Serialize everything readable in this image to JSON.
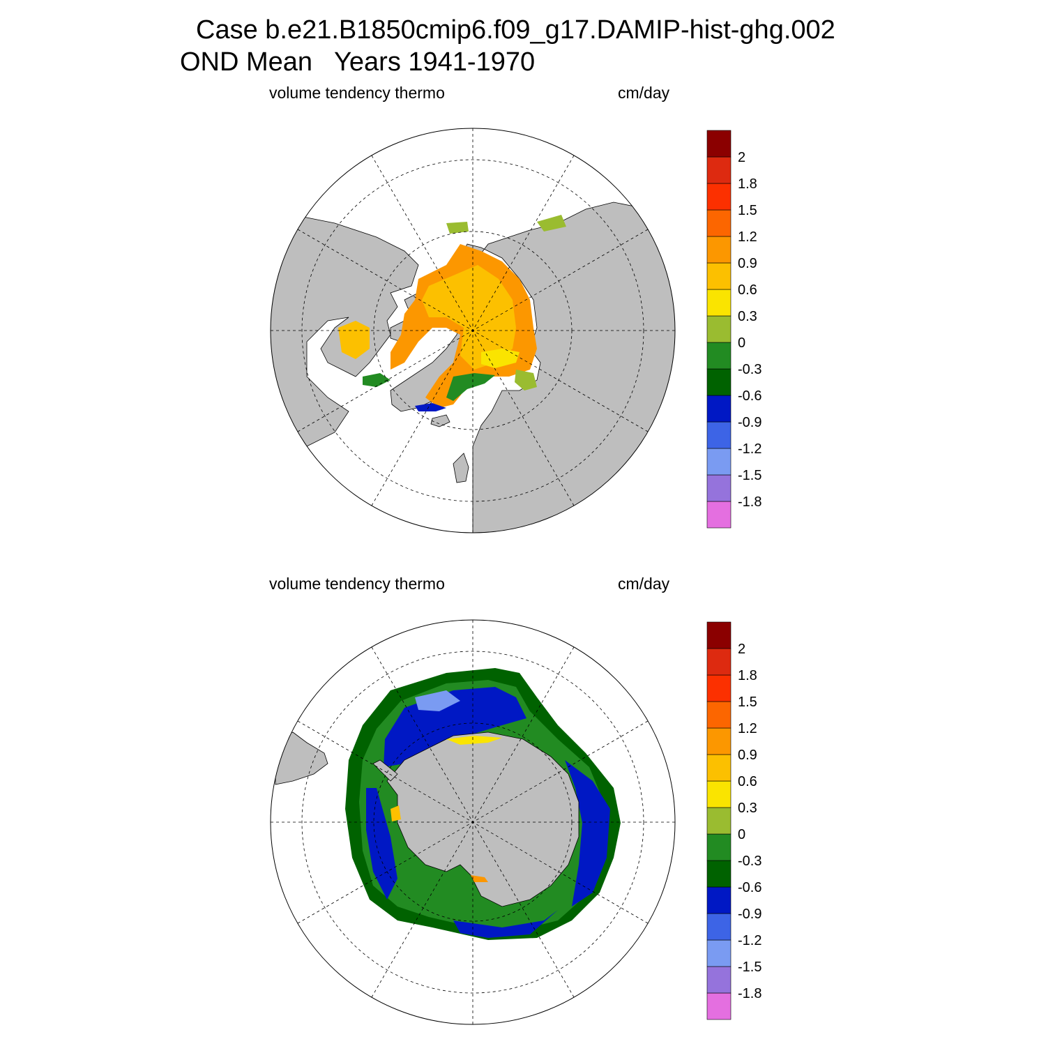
{
  "header": {
    "line1": "Case b.e21.B1850cmip6.f09_g17.DAMIP-hist-ghg.002",
    "line2": "OND Mean   Years 1941-1970"
  },
  "panels": [
    {
      "id": "north",
      "hemisphere": "Northern Hemisphere polar stereographic",
      "left_label": "volume tendency thermo",
      "right_label": "cm/day"
    },
    {
      "id": "south",
      "hemisphere": "Southern Hemisphere polar stereographic",
      "left_label": "volume tendency thermo",
      "right_label": "cm/day"
    }
  ],
  "colorbar": {
    "colors": [
      "#e46fe0",
      "#9573dc",
      "#7a9bf2",
      "#3d64e6",
      "#0018c4",
      "#006200",
      "#228b22",
      "#9abc30",
      "#fae400",
      "#fcc000",
      "#fc9700",
      "#fc6600",
      "#fc3000",
      "#dd2a10",
      "#8b0000"
    ],
    "labels": [
      "-1.8",
      "-1.5",
      "-1.2",
      "-0.9",
      "-0.6",
      "-0.3",
      "0",
      "0.3",
      "0.6",
      "0.9",
      "1.2",
      "1.5",
      "1.8",
      "2"
    ]
  },
  "map_colors": {
    "land": "#bebebe",
    "ocean": "#ffffff",
    "outline": "#000000"
  }
}
